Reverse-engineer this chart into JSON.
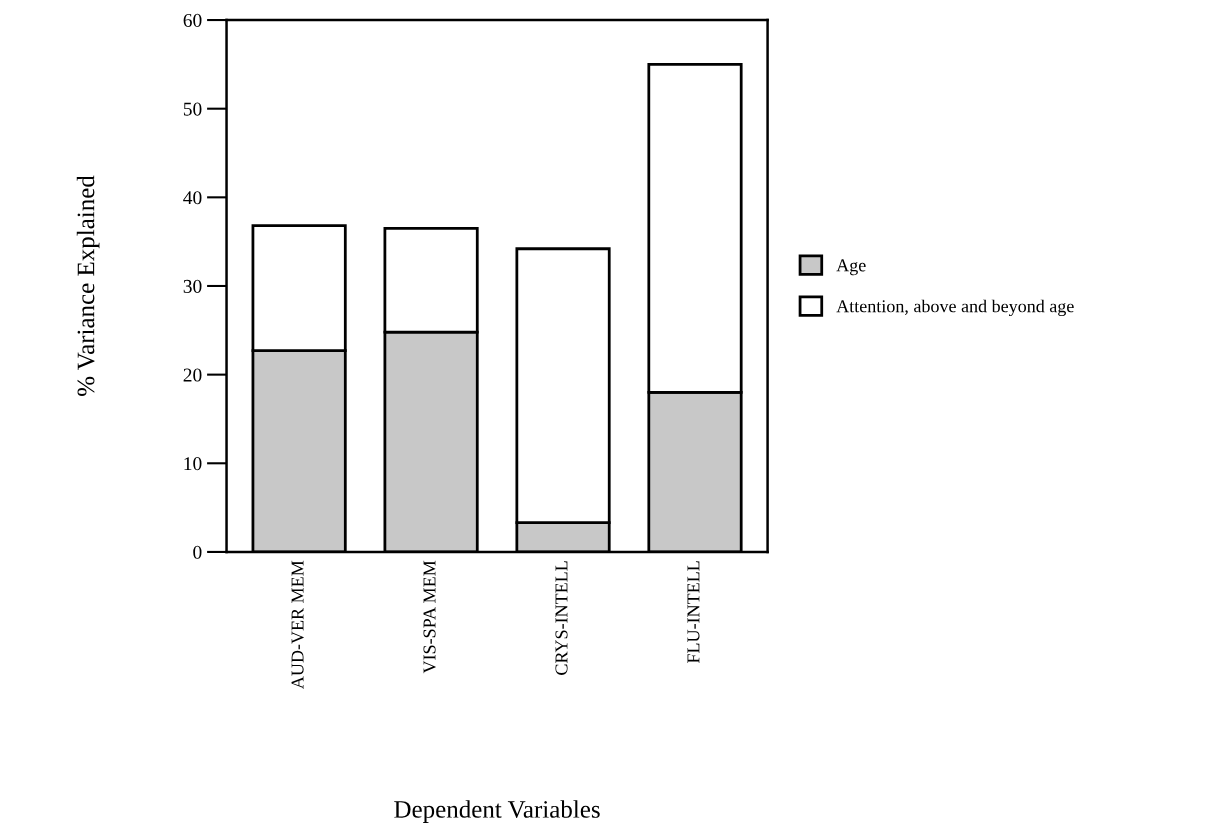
{
  "chart_data": {
    "type": "bar",
    "stacked": true,
    "xlabel": "Dependent Variables",
    "ylabel": "% Variance Explained",
    "categories": [
      "AUD-VER MEM",
      "VIS-SPA MEM",
      "CRYS-INTELL",
      "FLU-INTELL"
    ],
    "series": [
      {
        "name": "Age",
        "color": "#c8c8c8",
        "values": [
          22.7,
          24.8,
          3.3,
          18
        ]
      },
      {
        "name": "Attention, above and beyond age",
        "color": "#ffffff",
        "values": [
          14.1,
          11.7,
          30.9,
          37
        ]
      }
    ],
    "ylim": [
      0,
      60
    ],
    "yticks": [
      0,
      10,
      20,
      30,
      40,
      50,
      60
    ],
    "grid": false,
    "legend": "right"
  }
}
